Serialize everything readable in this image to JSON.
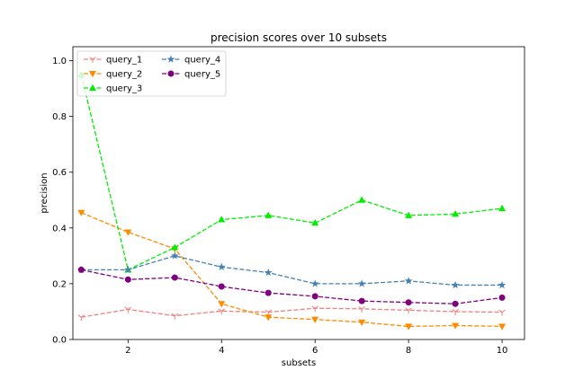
{
  "chart_data": {
    "type": "line",
    "title": "precision scores over 10 subsets",
    "xlabel": "subsets",
    "ylabel": "precision",
    "xlim": [
      0.82,
      10.48
    ],
    "ylim": [
      0.0,
      1.05
    ],
    "xticks": [
      2,
      4,
      6,
      8,
      10
    ],
    "xtick_labels": [
      "2",
      "4",
      "6",
      "8",
      "10"
    ],
    "yticks": [
      0.0,
      0.2,
      0.4,
      0.6,
      0.8,
      1.0
    ],
    "ytick_labels": [
      "0.0",
      "0.2",
      "0.4",
      "0.6",
      "0.8",
      "1.0"
    ],
    "grid": false,
    "legend_position": "top-left",
    "legend_columns": 2,
    "x": [
      1,
      2,
      3,
      4,
      5,
      6,
      7,
      8,
      9,
      10
    ],
    "series": [
      {
        "name": "query_1",
        "color": "#f08080",
        "marker": "tri_down",
        "values": [
          0.08,
          0.108,
          0.085,
          0.102,
          0.098,
          0.112,
          0.11,
          0.105,
          0.1,
          0.098
        ]
      },
      {
        "name": "query_2",
        "color": "#ff8c00",
        "marker": "triangle_down",
        "values": [
          0.455,
          0.385,
          0.325,
          0.128,
          0.08,
          0.072,
          0.062,
          0.047,
          0.05,
          0.047
        ]
      },
      {
        "name": "query_3",
        "color": "#00ee00",
        "marker": "triangle_up",
        "values": [
          0.95,
          0.25,
          0.33,
          0.43,
          0.445,
          0.418,
          0.5,
          0.445,
          0.45,
          0.47
        ]
      },
      {
        "name": "query_4",
        "color": "#4682b4",
        "marker": "star",
        "values": [
          0.25,
          0.25,
          0.3,
          0.26,
          0.24,
          0.2,
          0.2,
          0.21,
          0.195,
          0.195
        ]
      },
      {
        "name": "query_5",
        "color": "#800080",
        "marker": "circle",
        "values": [
          0.25,
          0.215,
          0.222,
          0.19,
          0.167,
          0.155,
          0.138,
          0.133,
          0.128,
          0.15
        ]
      }
    ]
  }
}
